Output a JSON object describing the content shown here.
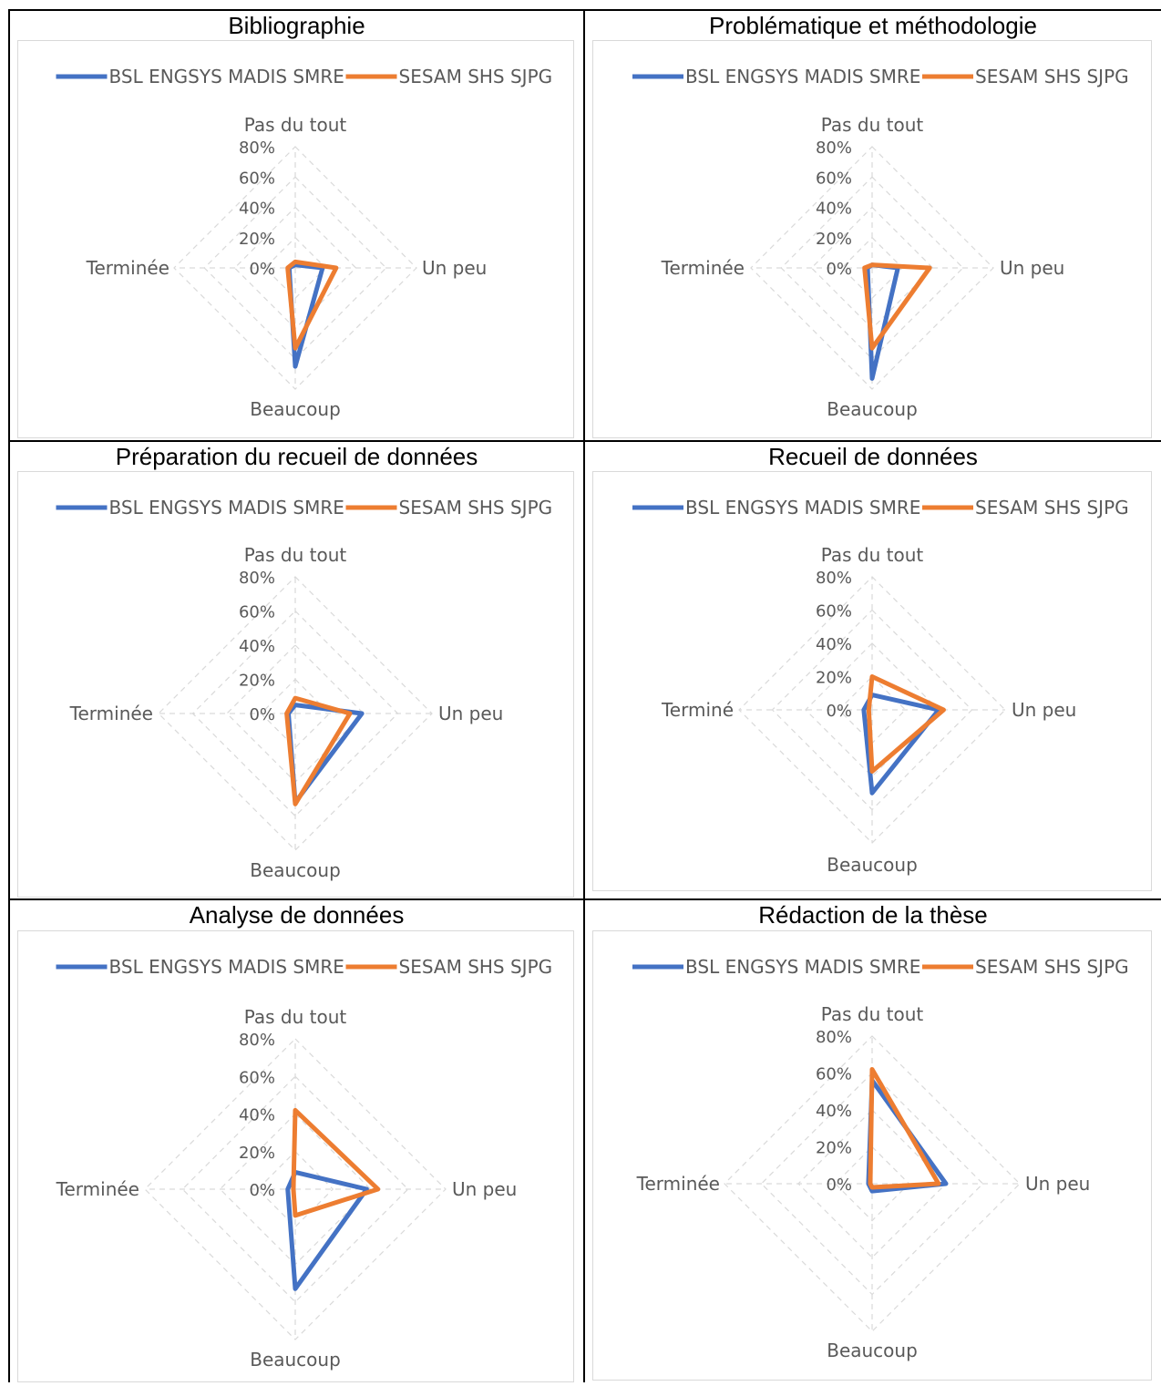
{
  "axes_default": [
    "Pas du tout",
    "Un peu",
    "Beaucoup",
    "Terminée"
  ],
  "ticks": [
    "0%",
    "20%",
    "40%",
    "60%",
    "80%"
  ],
  "colors": {
    "series1": "#4472c4",
    "series2": "#ed7d31",
    "grid": "#d9d9d9",
    "text": "#595959"
  },
  "chart_data": [
    {
      "type": "radar",
      "title": "Bibliographie",
      "categories": [
        "Pas du tout",
        "Un peu",
        "Beaucoup",
        "Terminée"
      ],
      "rlim": [
        0,
        80
      ],
      "legend": "top",
      "series": [
        {
          "name": "BSL ENGSYS MADIS SMRE",
          "values": [
            2,
            18,
            65,
            4
          ]
        },
        {
          "name": "SESAM SHS SJPG",
          "values": [
            4,
            27,
            53,
            5
          ]
        }
      ]
    },
    {
      "type": "radar",
      "title": "Problématique et méthodologie",
      "categories": [
        "Pas du tout",
        "Un peu",
        "Beaucoup",
        "Terminée"
      ],
      "rlim": [
        0,
        80
      ],
      "legend": "top",
      "series": [
        {
          "name": "BSL ENGSYS MADIS SMRE",
          "values": [
            2,
            17,
            73,
            3
          ]
        },
        {
          "name": "SESAM SHS SJPG",
          "values": [
            2,
            38,
            53,
            5
          ]
        }
      ]
    },
    {
      "type": "radar",
      "title": "Préparation du recueil de données",
      "categories": [
        "Pas du tout",
        "Un peu",
        "Beaucoup",
        "Terminée"
      ],
      "rlim": [
        0,
        80
      ],
      "legend": "top",
      "series": [
        {
          "name": "BSL ENGSYS MADIS SMRE",
          "values": [
            5,
            39,
            52,
            4
          ]
        },
        {
          "name": "SESAM SHS SJPG",
          "values": [
            9,
            32,
            53,
            5
          ]
        }
      ]
    },
    {
      "type": "radar",
      "title": "Recueil de données",
      "categories": [
        "Pas du tout",
        "Un peu",
        "Beaucoup",
        "Terminé"
      ],
      "rlim": [
        0,
        80
      ],
      "legend": "top",
      "series": [
        {
          "name": "BSL ENGSYS MADIS SMRE",
          "values": [
            9,
            40,
            50,
            5
          ]
        },
        {
          "name": "SESAM SHS SJPG",
          "values": [
            20,
            43,
            37,
            2
          ]
        }
      ]
    },
    {
      "type": "radar",
      "title": "Analyse de données",
      "categories": [
        "Pas du tout",
        "Un peu",
        "Beaucoup",
        "Terminée"
      ],
      "rlim": [
        0,
        80
      ],
      "legend": "top",
      "series": [
        {
          "name": "BSL ENGSYS MADIS SMRE",
          "values": [
            9,
            38,
            53,
            4
          ]
        },
        {
          "name": "SESAM SHS SJPG",
          "values": [
            42,
            44,
            14,
            1
          ]
        }
      ]
    },
    {
      "type": "radar",
      "title": "Rédaction de la thèse",
      "categories": [
        "Pas du tout",
        "Un peu",
        "Beaucoup",
        "Terminée"
      ],
      "rlim": [
        0,
        80
      ],
      "legend": "top",
      "series": [
        {
          "name": "BSL ENGSYS MADIS SMRE",
          "values": [
            56,
            40,
            4,
            2
          ]
        },
        {
          "name": "SESAM SHS SJPG",
          "values": [
            62,
            36,
            2,
            1
          ]
        }
      ]
    }
  ]
}
